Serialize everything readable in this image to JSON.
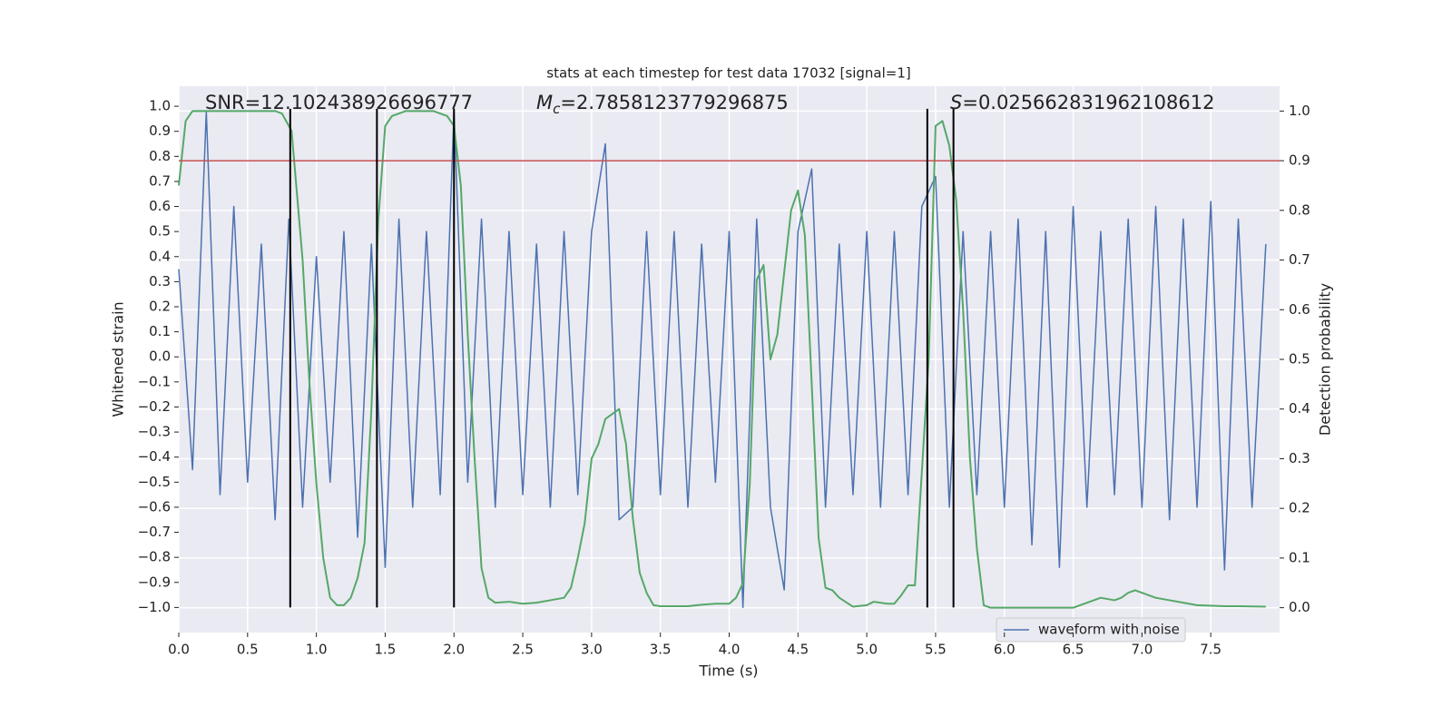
{
  "chart_data": {
    "type": "line",
    "title": "stats at each timestep for test data 17032 [signal=1]",
    "xlabel": "Time (s)",
    "ylabel": "Whitened strain",
    "y2label": "Detection probability",
    "xlim": [
      0,
      8.0
    ],
    "ylim": [
      -1.1,
      1.08
    ],
    "y2lim": [
      -0.05,
      1.05
    ],
    "xticks": [
      {
        "value": 0,
        "label": "0.0"
      },
      0.5,
      {
        "value": 1,
        "label": "1.0"
      },
      1.5,
      {
        "value": 2,
        "label": "2.0"
      },
      2.5,
      {
        "value": 3,
        "label": "3.0"
      },
      3.5,
      {
        "value": 4,
        "label": "4.0"
      },
      4.5,
      {
        "value": 5,
        "label": "5.0"
      },
      5.5,
      {
        "value": 6,
        "label": "6.0"
      },
      6.5,
      {
        "value": 7,
        "label": "7.0"
      },
      7.5
    ],
    "yticks": [
      {
        "value": -1,
        "label": "−1.0"
      },
      {
        "value": -0.9,
        "label": "−0.9"
      },
      {
        "value": -0.8,
        "label": "−0.8"
      },
      {
        "value": -0.7,
        "label": "−0.7"
      },
      {
        "value": -0.6,
        "label": "−0.6"
      },
      {
        "value": -0.5,
        "label": "−0.5"
      },
      {
        "value": -0.4,
        "label": "−0.4"
      },
      {
        "value": -0.3,
        "label": "−0.3"
      },
      {
        "value": -0.2,
        "label": "−0.2"
      },
      {
        "value": -0.1,
        "label": "−0.1"
      },
      {
        "value": 0,
        "label": "0.0"
      },
      0.1,
      0.2,
      0.3,
      0.4,
      0.5,
      0.6,
      0.7,
      0.8,
      0.9,
      {
        "value": 1,
        "label": "1.0"
      }
    ],
    "y2ticks": [
      {
        "value": 0,
        "label": "0.0"
      },
      0.1,
      0.2,
      0.3,
      0.4,
      0.5,
      0.6,
      0.7,
      0.8,
      0.9,
      {
        "value": 1,
        "label": "1.0"
      }
    ],
    "grid": true,
    "legend": "lower right",
    "annotations": [
      {
        "text": "SNR=12.102438926696777"
      },
      {
        "symbol": "M",
        "subscript": "c",
        "text": "=2.7858123779296875"
      },
      {
        "symbol": "S",
        "text": "=0.025662831962108612"
      }
    ],
    "vlines": [
      0.81,
      1.44,
      2.0,
      5.44,
      5.63
    ],
    "vline_ymin": -1.0,
    "vline_ymax": 0.99,
    "vline_color": "#000000",
    "hlines": [
      {
        "value": 0.9,
        "axis": "y2",
        "color": "#c44e52"
      }
    ],
    "series": [
      {
        "name": "waveform with noise",
        "color": "#4c72b0",
        "axis": "y",
        "x": [
          0.0,
          0.1,
          0.2,
          0.3,
          0.4,
          0.5,
          0.6,
          0.7,
          0.8,
          0.9,
          1.0,
          1.1,
          1.2,
          1.3,
          1.4,
          1.5,
          1.6,
          1.7,
          1.8,
          1.9,
          2.0,
          2.1,
          2.2,
          2.3,
          2.4,
          2.5,
          2.6,
          2.7,
          2.8,
          2.9,
          3.0,
          3.1,
          3.2,
          3.3,
          3.4,
          3.5,
          3.6,
          3.7,
          3.8,
          3.9,
          4.0,
          4.1,
          4.2,
          4.3,
          4.4,
          4.5,
          4.6,
          4.7,
          4.8,
          4.9,
          5.0,
          5.1,
          5.2,
          5.3,
          5.4,
          5.5,
          5.6,
          5.7,
          5.8,
          5.9,
          6.0,
          6.1,
          6.2,
          6.3,
          6.4,
          6.5,
          6.6,
          6.7,
          6.8,
          6.9,
          7.0,
          7.1,
          7.2,
          7.3,
          7.4,
          7.5,
          7.6,
          7.7,
          7.8,
          7.9
        ],
        "values": [
          0.35,
          -0.45,
          0.98,
          -0.55,
          0.6,
          -0.5,
          0.45,
          -0.65,
          0.55,
          -0.6,
          0.4,
          -0.5,
          0.5,
          -0.72,
          0.45,
          -0.84,
          0.55,
          -0.6,
          0.5,
          -0.55,
          0.98,
          -0.5,
          0.55,
          -0.6,
          0.5,
          -0.55,
          0.45,
          -0.6,
          0.5,
          -0.55,
          0.5,
          0.85,
          -0.65,
          -0.6,
          0.5,
          -0.55,
          0.5,
          -0.6,
          0.45,
          -0.5,
          0.5,
          -1.0,
          0.55,
          -0.6,
          -0.93,
          0.5,
          0.75,
          -0.6,
          0.45,
          -0.55,
          0.5,
          -0.6,
          0.5,
          -0.55,
          0.6,
          0.72,
          -0.6,
          0.5,
          -0.55,
          0.5,
          -0.6,
          0.55,
          -0.75,
          0.5,
          -0.84,
          0.6,
          -0.6,
          0.5,
          -0.55,
          0.55,
          -0.6,
          0.6,
          -0.65,
          0.55,
          -0.6,
          0.62,
          -0.85,
          0.55,
          -0.6,
          0.45
        ]
      },
      {
        "color": "#55a868",
        "axis": "y2",
        "x": [
          0.0,
          0.05,
          0.1,
          0.7,
          0.75,
          0.82,
          0.9,
          0.95,
          1.0,
          1.05,
          1.1,
          1.15,
          1.2,
          1.25,
          1.3,
          1.35,
          1.4,
          1.45,
          1.5,
          1.55,
          1.65,
          1.85,
          1.95,
          2.0,
          2.05,
          2.1,
          2.15,
          2.2,
          2.25,
          2.3,
          2.4,
          2.5,
          2.6,
          2.7,
          2.8,
          2.85,
          2.9,
          2.95,
          3.0,
          3.05,
          3.1,
          3.2,
          3.25,
          3.3,
          3.35,
          3.4,
          3.45,
          3.5,
          3.6,
          3.7,
          3.8,
          3.9,
          4.0,
          4.05,
          4.1,
          4.15,
          4.2,
          4.25,
          4.3,
          4.35,
          4.45,
          4.5,
          4.55,
          4.6,
          4.65,
          4.7,
          4.75,
          4.8,
          4.9,
          5.0,
          5.05,
          5.15,
          5.2,
          5.25,
          5.3,
          5.35,
          5.45,
          5.5,
          5.55,
          5.6,
          5.65,
          5.7,
          5.75,
          5.8,
          5.85,
          5.9,
          6.0,
          6.5,
          6.6,
          6.7,
          6.8,
          6.85,
          6.9,
          6.95,
          7.0,
          7.1,
          7.2,
          7.3,
          7.4,
          7.6,
          7.7,
          7.9
        ],
        "values": [
          0.85,
          0.98,
          1.0,
          1.0,
          0.995,
          0.96,
          0.7,
          0.45,
          0.25,
          0.1,
          0.02,
          0.005,
          0.005,
          0.02,
          0.06,
          0.13,
          0.4,
          0.78,
          0.97,
          0.99,
          1.0,
          1.0,
          0.99,
          0.97,
          0.85,
          0.55,
          0.3,
          0.08,
          0.02,
          0.01,
          0.012,
          0.008,
          0.01,
          0.015,
          0.02,
          0.04,
          0.1,
          0.17,
          0.3,
          0.33,
          0.38,
          0.4,
          0.33,
          0.18,
          0.07,
          0.03,
          0.005,
          0.003,
          0.003,
          0.003,
          0.006,
          0.008,
          0.008,
          0.02,
          0.05,
          0.25,
          0.66,
          0.69,
          0.5,
          0.55,
          0.8,
          0.84,
          0.75,
          0.45,
          0.14,
          0.04,
          0.035,
          0.02,
          0.002,
          0.005,
          0.012,
          0.008,
          0.008,
          0.025,
          0.045,
          0.045,
          0.5,
          0.97,
          0.98,
          0.93,
          0.82,
          0.6,
          0.3,
          0.12,
          0.005,
          0.0,
          0.0,
          0.0,
          0.01,
          0.02,
          0.015,
          0.02,
          0.03,
          0.035,
          0.03,
          0.02,
          0.015,
          0.01,
          0.005,
          0.003,
          0.003,
          0.002
        ]
      }
    ]
  }
}
